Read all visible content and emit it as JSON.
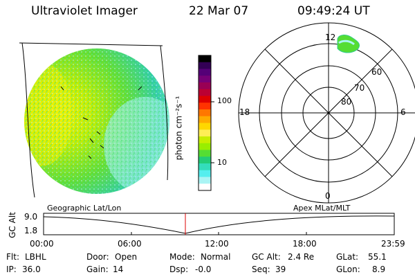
{
  "header": {
    "instrument": "Ultraviolet Imager",
    "date": "22 Mar 07",
    "time": "09:49:24 UT"
  },
  "colorbar": {
    "unit_label": "photon cm⁻²s⁻¹",
    "ticks": [
      "100",
      "10"
    ],
    "colors": [
      "#000000",
      "#330055",
      "#550077",
      "#770077",
      "#990055",
      "#bb0033",
      "#dd0000",
      "#ff3300",
      "#ff7700",
      "#ffaa00",
      "#ffd700",
      "#ffee55",
      "#c8ee00",
      "#99ee00",
      "#55dd33",
      "#22cc77",
      "#33ddbb",
      "#55eeee",
      "#aaf4f4",
      "#ffffff"
    ]
  },
  "polar_plot": {
    "labels_mlt": {
      "top": "12",
      "left": "18",
      "right": "6",
      "bottom": "0"
    },
    "labels_lat": [
      "60",
      "70",
      "80"
    ]
  },
  "timeline": {
    "title_left": "Geographic Lat/Lon",
    "title_right": "Apex MLat/MLT",
    "axis_label": "GC Alt",
    "y_top": "9.0",
    "y_bottom": "1.8",
    "x_ticks": [
      "00:00",
      "06:00",
      "12:00",
      "18:00",
      "23:59"
    ],
    "marker_time": "09:49:24",
    "colors": {
      "marker": "#dd0000"
    }
  },
  "status": {
    "row1": [
      {
        "key": "Flt:",
        "value": "LBHL"
      },
      {
        "key": "Door:",
        "value": "Open"
      },
      {
        "key": "Mode:",
        "value": "Normal"
      },
      {
        "key": "GC Alt:",
        "value": "2.4 Re"
      },
      {
        "key": "GLat:",
        "value": "55.1"
      }
    ],
    "row2": [
      {
        "key": "IP:",
        "value": "36.0"
      },
      {
        "key": "Gain:",
        "value": "14"
      },
      {
        "key": "Dsp:",
        "value": "-0.0"
      },
      {
        "key": "Seq:",
        "value": "39"
      },
      {
        "key": "GLon:",
        "value": "8.9"
      }
    ]
  }
}
